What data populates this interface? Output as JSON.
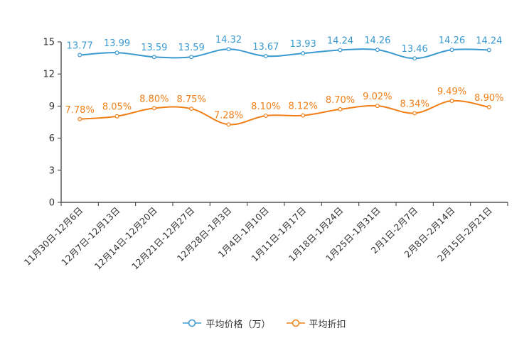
{
  "chart_data": {
    "type": "line",
    "categories": [
      "11月30日-12月6日",
      "12月7日-12月13日",
      "12月14日-12月20日",
      "12月21日-12月27日",
      "12月28日-1月3日",
      "1月4日-1月10日",
      "1月11日-1月17日",
      "1月18日-1月24日",
      "1月25日-1月31日",
      "2月1日-2月7日",
      "2月8日-2月14日",
      "2月15日-2月21日"
    ],
    "series": [
      {
        "name": "平均价格（万）",
        "color": "#3a9ad0",
        "values": [
          13.77,
          13.99,
          13.59,
          13.59,
          14.32,
          13.67,
          13.93,
          14.24,
          14.26,
          13.46,
          14.26,
          14.24
        ],
        "labels": [
          "13.77",
          "13.99",
          "13.59",
          "13.59",
          "14.32",
          "13.67",
          "13.93",
          "14.24",
          "14.26",
          "13.46",
          "14.26",
          "14.24"
        ]
      },
      {
        "name": "平均折扣",
        "color": "#f07f18",
        "values": [
          7.78,
          8.05,
          8.8,
          8.75,
          7.28,
          8.1,
          8.12,
          8.7,
          9.02,
          8.34,
          9.49,
          8.9
        ],
        "labels": [
          "7.78%",
          "8.05%",
          "8.80%",
          "8.75%",
          "7.28%",
          "8.10%",
          "8.12%",
          "8.70%",
          "9.02%",
          "8.34%",
          "9.49%",
          "8.90%"
        ]
      }
    ],
    "yticks": [
      "0",
      "3",
      "6",
      "9",
      "12",
      "15"
    ],
    "ylim": [
      0,
      15
    ],
    "title": "",
    "xlabel": "",
    "ylabel": "",
    "grid": false,
    "legend_position": "bottom-center",
    "axis_color": "#333333"
  }
}
